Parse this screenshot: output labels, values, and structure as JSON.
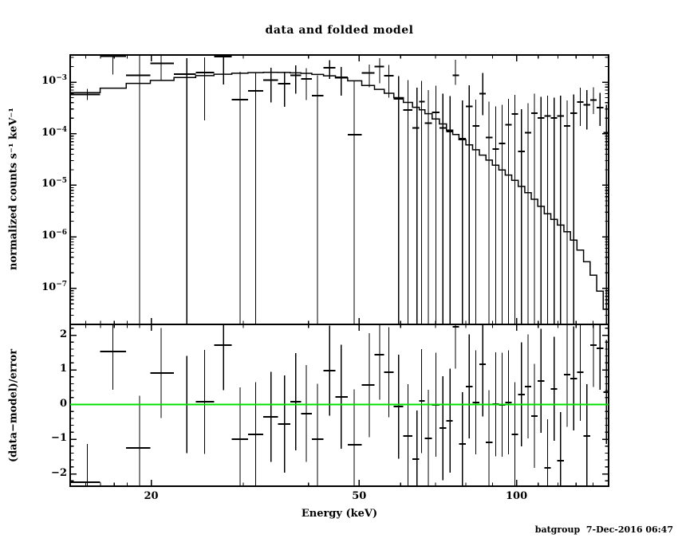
{
  "page": {
    "title": "data and folded model",
    "footer": "batgroup  7-Dec-2016 06:47"
  },
  "colors": {
    "foreground": "#000000",
    "background": "#ffffff",
    "model_line": "#000000",
    "data_marks": "#000000",
    "zero_line": "#00e100"
  },
  "axes": {
    "x": {
      "label": "Energy (keV)",
      "scale": "log",
      "range_kev": [
        14,
        150
      ],
      "major_ticks": [
        20,
        50,
        100
      ],
      "major_tick_labels": [
        "20",
        "50",
        "100"
      ],
      "minor_ticks": [
        15,
        16,
        17,
        18,
        19,
        30,
        40,
        60,
        70,
        80,
        90,
        110,
        120,
        130,
        140,
        150
      ]
    },
    "y_top": {
      "label": "normalized counts s⁻¹ keV⁻¹",
      "scale": "log",
      "range": [
        2e-08,
        0.0034
      ],
      "decade_exponents": [
        -3,
        -4,
        -5,
        -6,
        -7
      ],
      "decade_label_base": "10"
    },
    "y_bottom": {
      "label": "(data−model)/error",
      "scale": "linear",
      "range": [
        -2.36,
        2.31
      ],
      "major_ticks": [
        2,
        1,
        0,
        -1,
        -2
      ],
      "major_tick_labels": [
        "2",
        "1",
        "0",
        "−1",
        "−2"
      ],
      "minor_step": 0.2,
      "zero_line_value": 0
    }
  },
  "chart_data": {
    "type": "scatter",
    "description": "X-ray spectrum: top panel = count spectrum with stepped folded model and data crosses (x-extent = bin width, y-extent = error range, null low-error = bar extends below panel); bottom panel = (data-model)/error residuals with symmetric errors and green zero line. Bin edges are geometric midpoints of adjacent energies, spanning 14-150 keV.",
    "points_format": [
      "energy_keV",
      "counts_s_keV",
      "err_low_counts_or_null",
      "err_high_counts",
      "residual_sigma",
      "residual_err_sigma"
    ],
    "points": [
      [
        15.1,
        0.00058,
        0.00045,
        0.00074,
        -2.24,
        1.1
      ],
      [
        16.9,
        0.0032,
        0.0014,
        0.005,
        1.53,
        1.1
      ],
      [
        19.0,
        0.00135,
        null,
        0.0031,
        -1.25,
        1.5
      ],
      [
        20.9,
        0.0023,
        0.00105,
        0.0033,
        0.91,
        1.3
      ],
      [
        23.4,
        0.00142,
        null,
        0.0029,
        0.0,
        1.4
      ],
      [
        25.3,
        0.00152,
        0.00018,
        0.003,
        0.08,
        1.5
      ],
      [
        27.5,
        0.0031,
        0.0009,
        0.005,
        1.71,
        1.3
      ],
      [
        29.6,
        0.00046,
        null,
        0.0016,
        -1.0,
        1.5
      ],
      [
        31.7,
        0.00068,
        null,
        0.00155,
        -0.86,
        1.5
      ],
      [
        33.9,
        0.0011,
        0.0004,
        0.0019,
        -0.36,
        1.3
      ],
      [
        36.0,
        0.00093,
        0.00033,
        0.0016,
        -0.56,
        1.4
      ],
      [
        37.8,
        0.00135,
        0.0006,
        0.0021,
        0.08,
        1.4
      ],
      [
        39.6,
        0.00115,
        0.00045,
        0.00185,
        -0.26,
        1.4
      ],
      [
        41.6,
        0.00055,
        null,
        0.00135,
        -1.0,
        1.6
      ],
      [
        43.9,
        0.0019,
        0.00115,
        0.00265,
        0.98,
        1.3
      ],
      [
        46.2,
        0.00124,
        0.00055,
        0.00195,
        0.22,
        1.5
      ],
      [
        48.9,
        9.6e-05,
        null,
        0.00105,
        -1.16,
        1.6
      ],
      [
        52.3,
        0.0015,
        0.0008,
        0.0022,
        0.56,
        1.5
      ],
      [
        54.7,
        0.002,
        0.00095,
        0.0029,
        1.44,
        1.3
      ],
      [
        57.0,
        0.00133,
        0.0005,
        0.00215,
        0.93,
        1.3
      ],
      [
        59.5,
        0.00047,
        null,
        0.0013,
        -0.06,
        1.5
      ],
      [
        62.0,
        0.00029,
        null,
        0.0011,
        -0.91,
        1.5
      ],
      [
        64.5,
        0.00013,
        null,
        0.00078,
        -1.57,
        1.4
      ],
      [
        65.8,
        0.00042,
        null,
        0.00105,
        0.1,
        1.5
      ],
      [
        67.8,
        0.00016,
        null,
        0.0007,
        -0.98,
        1.4
      ],
      [
        70.1,
        0.00026,
        null,
        0.00085,
        -0.01,
        1.5
      ],
      [
        72.3,
        0.00013,
        null,
        0.0006,
        -0.68,
        1.5
      ],
      [
        74.6,
        0.00011,
        null,
        0.00054,
        -0.47,
        1.5
      ],
      [
        76.4,
        0.00135,
        0.00088,
        0.0027,
        2.24,
        1.2
      ],
      [
        78.8,
        8e-05,
        null,
        0.00044,
        -1.14,
        1.5
      ],
      [
        81.2,
        0.00034,
        null,
        0.00086,
        0.52,
        1.5
      ],
      [
        83.6,
        0.00014,
        null,
        0.00046,
        0.06,
        1.5
      ],
      [
        86.2,
        0.0006,
        0.00023,
        0.0015,
        1.16,
        1.5
      ],
      [
        88.6,
        8.5e-05,
        null,
        0.00042,
        -1.09,
        1.5
      ],
      [
        91.2,
        5e-05,
        null,
        0.00034,
        0.01,
        1.5
      ],
      [
        93.8,
        6.5e-05,
        null,
        0.00036,
        -0.01,
        1.5
      ],
      [
        96.5,
        0.00015,
        null,
        0.00047,
        0.06,
        1.5
      ],
      [
        99.3,
        0.00024,
        null,
        0.00057,
        -0.86,
        1.5
      ],
      [
        102.2,
        4.5e-05,
        null,
        0.0003,
        0.29,
        1.5
      ],
      [
        105.2,
        0.000105,
        null,
        0.00039,
        0.52,
        1.5
      ],
      [
        108.2,
        0.00025,
        null,
        0.0006,
        -0.33,
        1.5
      ],
      [
        111.4,
        0.0002,
        null,
        0.00052,
        0.68,
        1.5
      ],
      [
        114.6,
        0.00022,
        null,
        0.00055,
        -1.83,
        1.4
      ],
      [
        118.0,
        0.0002,
        null,
        0.0005,
        0.45,
        1.5
      ],
      [
        121.4,
        0.00022,
        null,
        0.00055,
        -1.62,
        1.4
      ],
      [
        125.0,
        0.00014,
        null,
        0.00044,
        0.86,
        1.5
      ],
      [
        128.6,
        0.00025,
        null,
        0.00058,
        0.75,
        1.5
      ],
      [
        132.4,
        0.00041,
        0.00014,
        0.00078,
        0.93,
        1.4
      ],
      [
        136.3,
        0.00036,
        0.00012,
        0.0007,
        -0.91,
        1.5
      ],
      [
        140.3,
        0.00045,
        0.00024,
        0.0008,
        1.71,
        1.2
      ],
      [
        144.4,
        0.00032,
        0.00014,
        0.00062,
        1.62,
        1.2
      ],
      [
        148.6,
        0.000105,
        null,
        0.00036,
        0.36,
        1.5
      ]
    ],
    "model_anchors": [
      [
        14,
        0.00056
      ],
      [
        16,
        0.00068
      ],
      [
        18,
        0.00087
      ],
      [
        20,
        0.00102
      ],
      [
        22.5,
        0.00118
      ],
      [
        25,
        0.00132
      ],
      [
        28,
        0.00144
      ],
      [
        31,
        0.00152
      ],
      [
        34,
        0.00155
      ],
      [
        37,
        0.00153
      ],
      [
        40,
        0.00147
      ],
      [
        44,
        0.00132
      ],
      [
        48,
        0.00112
      ],
      [
        52,
        0.00088
      ],
      [
        56,
        0.00066
      ],
      [
        60,
        0.00048
      ],
      [
        64,
        0.00034
      ],
      [
        68,
        0.00024
      ],
      [
        72,
        0.00016
      ],
      [
        76,
        0.0001
      ],
      [
        80,
        6.8e-05
      ],
      [
        85,
        4.3e-05
      ],
      [
        90,
        2.7e-05
      ],
      [
        95,
        1.8e-05
      ],
      [
        100,
        1.17e-05
      ],
      [
        105,
        7.3e-06
      ],
      [
        110,
        4.5e-06
      ],
      [
        115,
        2.7e-06
      ],
      [
        120,
        1.9e-06
      ],
      [
        125,
        1.25e-06
      ],
      [
        130,
        7.5e-07
      ],
      [
        135,
        4e-07
      ],
      [
        140,
        1.9e-07
      ],
      [
        145,
        8e-08
      ],
      [
        150,
        3e-08
      ]
    ]
  }
}
